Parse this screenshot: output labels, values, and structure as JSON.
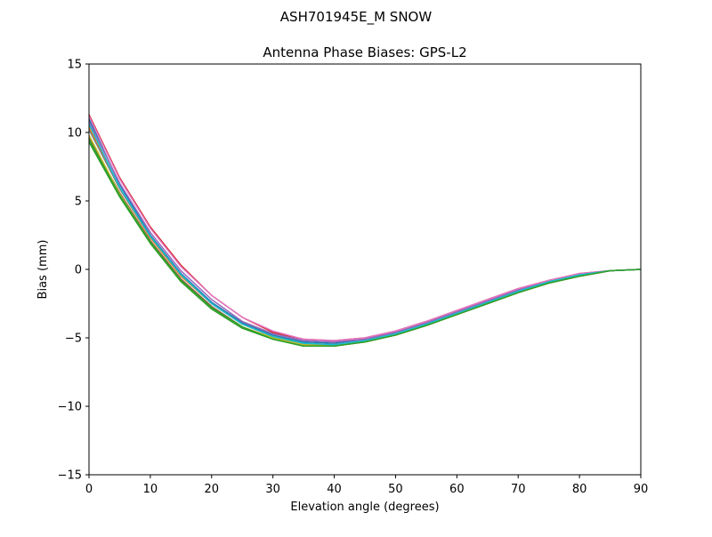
{
  "chart_data": {
    "type": "line",
    "suptitle": "ASH701945E_M    SNOW",
    "title": "Antenna Phase Biases: GPS-L2",
    "xlabel": "Elevation angle (degrees)",
    "ylabel": "Bias (mm)",
    "xlim": [
      0,
      90
    ],
    "ylim": [
      -15,
      15
    ],
    "xticks": [
      0,
      10,
      20,
      30,
      40,
      50,
      60,
      70,
      80,
      90
    ],
    "yticks": [
      -15,
      -10,
      -5,
      0,
      5,
      10,
      15
    ],
    "xtick_labels": [
      "0",
      "10",
      "20",
      "30",
      "40",
      "50",
      "60",
      "70",
      "80",
      "90"
    ],
    "ytick_labels": [
      "−15",
      "−10",
      "−5",
      "0",
      "5",
      "10",
      "15"
    ],
    "grid": false,
    "x": [
      0,
      5,
      10,
      15,
      20,
      25,
      30,
      35,
      40,
      45,
      50,
      55,
      60,
      65,
      70,
      75,
      80,
      85,
      90
    ],
    "series": [
      {
        "color": "#1f77b4",
        "values": [
          11.0,
          6.2,
          2.5,
          -0.3,
          -2.4,
          -3.9,
          -4.8,
          -5.3,
          -5.4,
          -5.1,
          -4.6,
          -3.9,
          -3.1,
          -2.3,
          -1.5,
          -0.9,
          -0.4,
          -0.1,
          0.0
        ]
      },
      {
        "color": "#ff7f0e",
        "values": [
          10.4,
          5.9,
          2.3,
          -0.5,
          -2.5,
          -4.0,
          -4.9,
          -5.4,
          -5.5,
          -5.2,
          -4.7,
          -4.0,
          -3.2,
          -2.4,
          -1.6,
          -0.9,
          -0.4,
          -0.1,
          0.0
        ]
      },
      {
        "color": "#2ca02c",
        "values": [
          9.3,
          5.3,
          1.9,
          -0.9,
          -2.9,
          -4.3,
          -5.1,
          -5.6,
          -5.6,
          -5.3,
          -4.8,
          -4.1,
          -3.3,
          -2.5,
          -1.7,
          -1.0,
          -0.5,
          -0.1,
          0.0
        ]
      },
      {
        "color": "#d62728",
        "values": [
          11.3,
          6.7,
          3.1,
          0.3,
          -1.9,
          -3.5,
          -4.6,
          -5.1,
          -5.2,
          -5.0,
          -4.5,
          -3.8,
          -3.0,
          -2.2,
          -1.4,
          -0.8,
          -0.3,
          -0.1,
          0.0
        ]
      },
      {
        "color": "#9467bd",
        "values": [
          10.8,
          6.3,
          2.7,
          -0.1,
          -2.2,
          -3.8,
          -4.7,
          -5.2,
          -5.3,
          -5.1,
          -4.6,
          -3.9,
          -3.1,
          -2.3,
          -1.5,
          -0.9,
          -0.4,
          -0.1,
          0.0
        ]
      },
      {
        "color": "#8c564b",
        "values": [
          9.6,
          5.6,
          2.1,
          -0.7,
          -2.7,
          -4.2,
          -5.0,
          -5.5,
          -5.6,
          -5.3,
          -4.8,
          -4.1,
          -3.3,
          -2.5,
          -1.7,
          -1.0,
          -0.5,
          -0.1,
          0.0
        ]
      },
      {
        "color": "#e377c2",
        "values": [
          11.2,
          6.6,
          3.0,
          0.2,
          -1.9,
          -3.5,
          -4.5,
          -5.1,
          -5.2,
          -5.0,
          -4.5,
          -3.8,
          -3.0,
          -2.2,
          -1.4,
          -0.8,
          -0.3,
          -0.1,
          0.0
        ]
      },
      {
        "color": "#7f7f7f",
        "values": [
          10.2,
          5.9,
          2.4,
          -0.4,
          -2.5,
          -4.0,
          -4.9,
          -5.4,
          -5.5,
          -5.2,
          -4.7,
          -4.0,
          -3.2,
          -2.4,
          -1.6,
          -0.9,
          -0.4,
          -0.1,
          0.0
        ]
      },
      {
        "color": "#bcbd22",
        "values": [
          9.8,
          5.5,
          2.0,
          -0.8,
          -2.8,
          -4.2,
          -5.0,
          -5.5,
          -5.6,
          -5.3,
          -4.8,
          -4.1,
          -3.3,
          -2.5,
          -1.7,
          -1.0,
          -0.5,
          -0.1,
          0.0
        ]
      },
      {
        "color": "#17becf",
        "values": [
          10.6,
          6.0,
          2.4,
          -0.4,
          -2.5,
          -4.0,
          -4.9,
          -5.4,
          -5.5,
          -5.2,
          -4.7,
          -4.0,
          -3.2,
          -2.4,
          -1.6,
          -0.9,
          -0.4,
          -0.1,
          0.0
        ]
      },
      {
        "color": "#2ca02c",
        "values": [
          9.5,
          5.4,
          2.0,
          -0.8,
          -2.8,
          -4.2,
          -5.1,
          -5.6,
          -5.6,
          -5.3,
          -4.8,
          -4.1,
          -3.3,
          -2.5,
          -1.7,
          -1.0,
          -0.5,
          -0.1,
          0.0
        ]
      }
    ]
  }
}
